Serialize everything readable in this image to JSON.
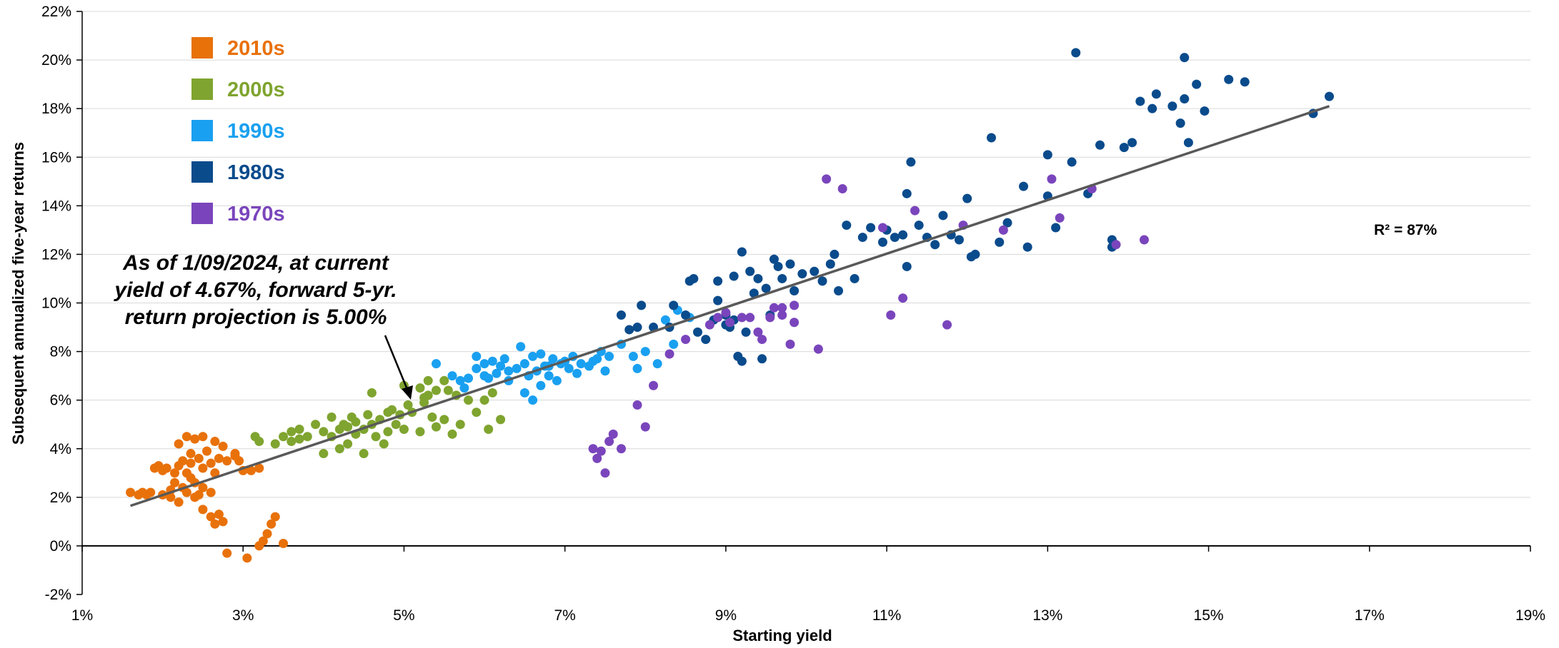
{
  "chart_data": {
    "type": "scatter",
    "title": "",
    "xlabel": "Starting yield",
    "ylabel": "Subsequent annualized five-year returns",
    "xlim": [
      1,
      19
    ],
    "ylim": [
      -2,
      22
    ],
    "x_ticks": [
      "1%",
      "3%",
      "5%",
      "7%",
      "9%",
      "11%",
      "13%",
      "15%",
      "17%",
      "19%"
    ],
    "y_ticks": [
      "-2%",
      "0%",
      "2%",
      "4%",
      "6%",
      "8%",
      "10%",
      "12%",
      "14%",
      "16%",
      "18%",
      "20%",
      "22%"
    ],
    "grid": "horizontal",
    "legend_position": "top-left",
    "r_squared_label": "R² = 87%",
    "annotation": [
      "As of 1/09/2024, at current",
      "yield of 4.67%, forward 5-yr.",
      "return projection is 5.00%"
    ],
    "trendline": {
      "x": [
        1.6,
        16.5
      ],
      "y": [
        1.65,
        18.1
      ],
      "color": "#595959"
    },
    "series": [
      {
        "name": "2010s",
        "color": "#E8710A",
        "points": [
          [
            1.6,
            2.2
          ],
          [
            1.7,
            2.1
          ],
          [
            1.75,
            2.2
          ],
          [
            1.8,
            2.1
          ],
          [
            1.85,
            2.2
          ],
          [
            1.9,
            3.2
          ],
          [
            1.95,
            3.3
          ],
          [
            2.0,
            3.1
          ],
          [
            2.0,
            2.1
          ],
          [
            2.05,
            3.2
          ],
          [
            2.1,
            2.3
          ],
          [
            2.1,
            2.0
          ],
          [
            2.15,
            3.0
          ],
          [
            2.2,
            1.8
          ],
          [
            2.2,
            4.2
          ],
          [
            2.25,
            3.5
          ],
          [
            2.25,
            2.4
          ],
          [
            2.3,
            4.5
          ],
          [
            2.3,
            3.0
          ],
          [
            2.3,
            2.2
          ],
          [
            2.35,
            3.8
          ],
          [
            2.35,
            2.8
          ],
          [
            2.4,
            4.4
          ],
          [
            2.4,
            2.6
          ],
          [
            2.4,
            2.0
          ],
          [
            2.45,
            3.6
          ],
          [
            2.45,
            2.1
          ],
          [
            2.5,
            4.5
          ],
          [
            2.5,
            3.2
          ],
          [
            2.5,
            2.4
          ],
          [
            2.5,
            1.5
          ],
          [
            2.55,
            3.9
          ],
          [
            2.6,
            2.2
          ],
          [
            2.6,
            1.2
          ],
          [
            2.65,
            4.3
          ],
          [
            2.65,
            3.0
          ],
          [
            2.65,
            0.9
          ],
          [
            2.7,
            3.6
          ],
          [
            2.7,
            1.3
          ],
          [
            2.75,
            4.1
          ],
          [
            2.8,
            3.5
          ],
          [
            2.8,
            -0.3
          ],
          [
            2.9,
            3.8
          ],
          [
            2.95,
            3.5
          ],
          [
            3.0,
            3.1
          ],
          [
            3.05,
            -0.5
          ],
          [
            3.1,
            3.1
          ],
          [
            3.2,
            3.2
          ],
          [
            3.2,
            0.0
          ],
          [
            3.25,
            0.2
          ],
          [
            3.3,
            0.5
          ],
          [
            3.35,
            0.9
          ],
          [
            3.4,
            1.2
          ],
          [
            3.5,
            0.1
          ],
          [
            2.2,
            3.3
          ],
          [
            2.15,
            2.6
          ],
          [
            2.35,
            3.4
          ],
          [
            2.6,
            3.4
          ],
          [
            2.75,
            1.0
          ],
          [
            2.9,
            3.7
          ]
        ]
      },
      {
        "name": "2000s",
        "color": "#7FA42F",
        "points": [
          [
            3.15,
            4.5
          ],
          [
            3.2,
            4.3
          ],
          [
            3.4,
            4.2
          ],
          [
            3.5,
            4.5
          ],
          [
            3.6,
            4.3
          ],
          [
            3.6,
            4.7
          ],
          [
            3.7,
            4.8
          ],
          [
            3.8,
            4.5
          ],
          [
            3.9,
            5.0
          ],
          [
            4.0,
            4.7
          ],
          [
            4.0,
            3.8
          ],
          [
            4.1,
            4.5
          ],
          [
            4.1,
            5.3
          ],
          [
            4.2,
            4.0
          ],
          [
            4.2,
            4.8
          ],
          [
            4.25,
            5.0
          ],
          [
            4.3,
            4.2
          ],
          [
            4.3,
            4.9
          ],
          [
            4.4,
            5.1
          ],
          [
            4.4,
            4.6
          ],
          [
            4.5,
            4.8
          ],
          [
            4.5,
            3.8
          ],
          [
            4.55,
            5.4
          ],
          [
            4.6,
            5.0
          ],
          [
            4.6,
            6.3
          ],
          [
            4.65,
            4.5
          ],
          [
            4.7,
            5.2
          ],
          [
            4.75,
            4.2
          ],
          [
            4.8,
            5.5
          ],
          [
            4.8,
            4.7
          ],
          [
            4.9,
            5.0
          ],
          [
            4.95,
            5.4
          ],
          [
            5.0,
            4.8
          ],
          [
            5.0,
            6.6
          ],
          [
            5.05,
            5.8
          ],
          [
            5.1,
            5.5
          ],
          [
            5.2,
            4.7
          ],
          [
            5.2,
            6.5
          ],
          [
            5.25,
            5.9
          ],
          [
            5.3,
            6.8
          ],
          [
            5.3,
            6.2
          ],
          [
            5.35,
            5.3
          ],
          [
            5.4,
            6.4
          ],
          [
            5.4,
            4.9
          ],
          [
            5.5,
            6.8
          ],
          [
            5.5,
            5.2
          ],
          [
            5.6,
            4.6
          ],
          [
            5.65,
            6.2
          ],
          [
            5.7,
            5.0
          ],
          [
            5.8,
            6.0
          ],
          [
            5.9,
            5.5
          ],
          [
            6.0,
            6.0
          ],
          [
            6.05,
            4.8
          ],
          [
            6.2,
            5.2
          ],
          [
            6.1,
            6.3
          ],
          [
            5.25,
            6.1
          ],
          [
            4.35,
            5.3
          ],
          [
            3.7,
            4.4
          ],
          [
            4.85,
            5.6
          ],
          [
            5.55,
            6.4
          ]
        ]
      },
      {
        "name": "1990s",
        "color": "#1AA0F0",
        "points": [
          [
            5.4,
            7.5
          ],
          [
            5.6,
            7.0
          ],
          [
            5.7,
            6.8
          ],
          [
            5.75,
            6.5
          ],
          [
            5.8,
            6.9
          ],
          [
            5.9,
            7.3
          ],
          [
            5.9,
            7.8
          ],
          [
            6.0,
            7.5
          ],
          [
            6.05,
            6.9
          ],
          [
            6.1,
            7.6
          ],
          [
            6.15,
            7.1
          ],
          [
            6.2,
            7.4
          ],
          [
            6.25,
            7.7
          ],
          [
            6.3,
            6.8
          ],
          [
            6.3,
            7.2
          ],
          [
            6.4,
            7.3
          ],
          [
            6.45,
            8.2
          ],
          [
            6.5,
            7.5
          ],
          [
            6.5,
            6.3
          ],
          [
            6.55,
            7.0
          ],
          [
            6.6,
            7.8
          ],
          [
            6.6,
            6.0
          ],
          [
            6.65,
            7.2
          ],
          [
            6.7,
            7.9
          ],
          [
            6.7,
            6.6
          ],
          [
            6.8,
            7.4
          ],
          [
            6.8,
            7.0
          ],
          [
            6.85,
            7.7
          ],
          [
            6.9,
            6.8
          ],
          [
            6.95,
            7.5
          ],
          [
            7.0,
            7.6
          ],
          [
            7.05,
            7.3
          ],
          [
            7.1,
            7.8
          ],
          [
            7.15,
            7.1
          ],
          [
            7.2,
            7.5
          ],
          [
            7.3,
            7.4
          ],
          [
            7.4,
            7.7
          ],
          [
            7.45,
            8.0
          ],
          [
            7.5,
            7.2
          ],
          [
            7.55,
            7.8
          ],
          [
            7.7,
            8.3
          ],
          [
            7.85,
            7.8
          ],
          [
            7.9,
            7.3
          ],
          [
            8.0,
            8.0
          ],
          [
            8.15,
            7.5
          ],
          [
            8.25,
            9.3
          ],
          [
            8.35,
            8.3
          ],
          [
            8.4,
            9.7
          ],
          [
            8.55,
            9.4
          ],
          [
            6.0,
            7.0
          ],
          [
            6.75,
            7.4
          ],
          [
            7.35,
            7.6
          ]
        ]
      },
      {
        "name": "1980s",
        "color": "#0A4B8C",
        "points": [
          [
            7.7,
            9.5
          ],
          [
            7.8,
            8.9
          ],
          [
            7.9,
            9.0
          ],
          [
            7.95,
            9.9
          ],
          [
            8.1,
            9.0
          ],
          [
            8.3,
            9.0
          ],
          [
            8.35,
            9.9
          ],
          [
            8.5,
            9.5
          ],
          [
            8.55,
            10.9
          ],
          [
            8.6,
            11.0
          ],
          [
            8.65,
            8.8
          ],
          [
            8.75,
            8.5
          ],
          [
            8.85,
            9.3
          ],
          [
            8.9,
            10.1
          ],
          [
            8.9,
            10.9
          ],
          [
            9.0,
            9.5
          ],
          [
            9.05,
            9.0
          ],
          [
            9.1,
            9.3
          ],
          [
            9.1,
            11.1
          ],
          [
            9.15,
            7.8
          ],
          [
            9.2,
            7.6
          ],
          [
            9.2,
            12.1
          ],
          [
            9.25,
            8.8
          ],
          [
            9.3,
            11.3
          ],
          [
            9.35,
            10.4
          ],
          [
            9.4,
            11.0
          ],
          [
            9.45,
            7.7
          ],
          [
            9.5,
            10.6
          ],
          [
            9.6,
            11.8
          ],
          [
            9.65,
            11.5
          ],
          [
            9.7,
            11.0
          ],
          [
            9.8,
            11.6
          ],
          [
            9.85,
            10.5
          ],
          [
            9.95,
            11.2
          ],
          [
            10.1,
            11.3
          ],
          [
            10.2,
            10.9
          ],
          [
            10.3,
            11.6
          ],
          [
            10.35,
            12.0
          ],
          [
            10.4,
            10.5
          ],
          [
            10.5,
            13.2
          ],
          [
            10.6,
            11.0
          ],
          [
            10.7,
            12.7
          ],
          [
            10.8,
            13.1
          ],
          [
            10.95,
            12.5
          ],
          [
            11.0,
            13.0
          ],
          [
            11.1,
            12.7
          ],
          [
            11.2,
            12.8
          ],
          [
            11.25,
            11.5
          ],
          [
            11.25,
            14.5
          ],
          [
            11.3,
            15.8
          ],
          [
            11.4,
            13.2
          ],
          [
            11.5,
            12.7
          ],
          [
            11.6,
            12.4
          ],
          [
            11.7,
            13.6
          ],
          [
            11.8,
            12.8
          ],
          [
            11.9,
            12.6
          ],
          [
            12.0,
            14.3
          ],
          [
            12.05,
            11.9
          ],
          [
            12.1,
            12.0
          ],
          [
            12.3,
            16.8
          ],
          [
            12.4,
            12.5
          ],
          [
            12.5,
            13.3
          ],
          [
            12.7,
            14.8
          ],
          [
            12.75,
            12.3
          ],
          [
            13.0,
            14.4
          ],
          [
            13.0,
            16.1
          ],
          [
            13.1,
            13.1
          ],
          [
            13.3,
            15.8
          ],
          [
            13.35,
            20.3
          ],
          [
            13.5,
            14.5
          ],
          [
            13.65,
            16.5
          ],
          [
            13.8,
            12.3
          ],
          [
            13.8,
            12.6
          ],
          [
            13.95,
            16.4
          ],
          [
            14.05,
            16.6
          ],
          [
            14.15,
            18.3
          ],
          [
            14.3,
            18.0
          ],
          [
            14.35,
            18.6
          ],
          [
            14.55,
            18.1
          ],
          [
            14.65,
            17.4
          ],
          [
            14.7,
            18.4
          ],
          [
            14.75,
            16.6
          ],
          [
            14.85,
            19.0
          ],
          [
            14.95,
            17.9
          ],
          [
            14.7,
            20.1
          ],
          [
            15.25,
            19.2
          ],
          [
            15.45,
            19.1
          ],
          [
            16.3,
            17.8
          ],
          [
            16.5,
            18.5
          ],
          [
            9.0,
            9.1
          ],
          [
            9.55,
            9.5
          ]
        ]
      },
      {
        "name": "1970s",
        "color": "#7A45BC",
        "points": [
          [
            7.35,
            4.0
          ],
          [
            7.4,
            3.6
          ],
          [
            7.45,
            3.9
          ],
          [
            7.5,
            3.0
          ],
          [
            7.55,
            4.3
          ],
          [
            7.6,
            4.6
          ],
          [
            7.7,
            4.0
          ],
          [
            7.9,
            5.8
          ],
          [
            8.0,
            4.9
          ],
          [
            8.1,
            6.6
          ],
          [
            8.3,
            7.9
          ],
          [
            8.5,
            8.5
          ],
          [
            8.8,
            9.1
          ],
          [
            8.9,
            9.4
          ],
          [
            9.0,
            9.6
          ],
          [
            9.05,
            9.2
          ],
          [
            9.2,
            9.4
          ],
          [
            9.3,
            9.4
          ],
          [
            9.4,
            8.8
          ],
          [
            9.45,
            8.5
          ],
          [
            9.55,
            9.4
          ],
          [
            9.6,
            9.8
          ],
          [
            9.7,
            9.8
          ],
          [
            9.8,
            8.3
          ],
          [
            9.85,
            9.2
          ],
          [
            9.85,
            9.9
          ],
          [
            10.15,
            8.1
          ],
          [
            10.25,
            15.1
          ],
          [
            10.45,
            14.7
          ],
          [
            10.95,
            13.1
          ],
          [
            11.05,
            9.5
          ],
          [
            11.2,
            10.2
          ],
          [
            11.35,
            13.8
          ],
          [
            11.75,
            9.1
          ],
          [
            11.95,
            13.2
          ],
          [
            12.45,
            13.0
          ],
          [
            13.05,
            15.1
          ],
          [
            13.15,
            13.5
          ],
          [
            13.55,
            14.7
          ],
          [
            13.85,
            12.4
          ],
          [
            14.2,
            12.6
          ],
          [
            9.7,
            9.5
          ]
        ]
      }
    ]
  }
}
